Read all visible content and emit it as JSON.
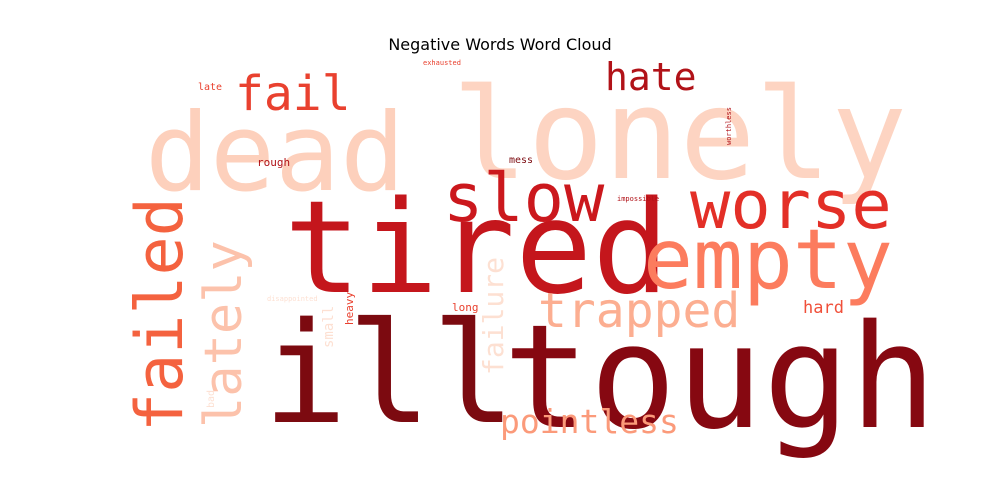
{
  "title": "Negative Words Word Cloud",
  "words": [
    {
      "text": "lonely",
      "color": "#fdd4c2",
      "orientation": "horizontal"
    },
    {
      "text": "dead",
      "color": "#fdd0bc",
      "orientation": "horizontal"
    },
    {
      "text": "tired",
      "color": "#c4161c",
      "orientation": "horizontal"
    },
    {
      "text": "ill",
      "color": "#7c0a10",
      "orientation": "horizontal"
    },
    {
      "text": "tough",
      "color": "#860811",
      "orientation": "horizontal"
    },
    {
      "text": "empty",
      "color": "#fc7c5e",
      "orientation": "horizontal"
    },
    {
      "text": "worse",
      "color": "#e32f27",
      "orientation": "horizontal"
    },
    {
      "text": "slow",
      "color": "#cb181d",
      "orientation": "horizontal"
    },
    {
      "text": "fail",
      "color": "#e9412f",
      "orientation": "horizontal"
    },
    {
      "text": "hate",
      "color": "#b11218",
      "orientation": "horizontal"
    },
    {
      "text": "trapped",
      "color": "#fcae91",
      "orientation": "horizontal"
    },
    {
      "text": "pointless",
      "color": "#fb9a7a",
      "orientation": "horizontal"
    },
    {
      "text": "failed",
      "color": "#f4623f",
      "orientation": "vertical"
    },
    {
      "text": "lately",
      "color": "#fcc2ab",
      "orientation": "vertical"
    },
    {
      "text": "failure",
      "color": "#fde0d2",
      "orientation": "vertical"
    },
    {
      "text": "hard",
      "color": "#f0503a",
      "orientation": "horizontal"
    },
    {
      "text": "long",
      "color": "#e9412f",
      "orientation": "horizontal"
    },
    {
      "text": "rough",
      "color": "#b11218",
      "orientation": "horizontal"
    },
    {
      "text": "mess",
      "color": "#7c0a10",
      "orientation": "horizontal"
    },
    {
      "text": "late",
      "color": "#e9412f",
      "orientation": "horizontal"
    },
    {
      "text": "heavy",
      "color": "#e9412f",
      "orientation": "vertical"
    },
    {
      "text": "small",
      "color": "#fde0d2",
      "orientation": "vertical"
    },
    {
      "text": "bad",
      "color": "#fde0d2",
      "orientation": "vertical"
    },
    {
      "text": "impossible",
      "color": "#b11218",
      "orientation": "horizontal"
    },
    {
      "text": "disappointed",
      "color": "#fde0d2",
      "orientation": "horizontal"
    },
    {
      "text": "exhausted",
      "color": "#e9412f",
      "orientation": "horizontal"
    },
    {
      "text": "worthless",
      "color": "#b11218",
      "orientation": "vertical"
    }
  ]
}
